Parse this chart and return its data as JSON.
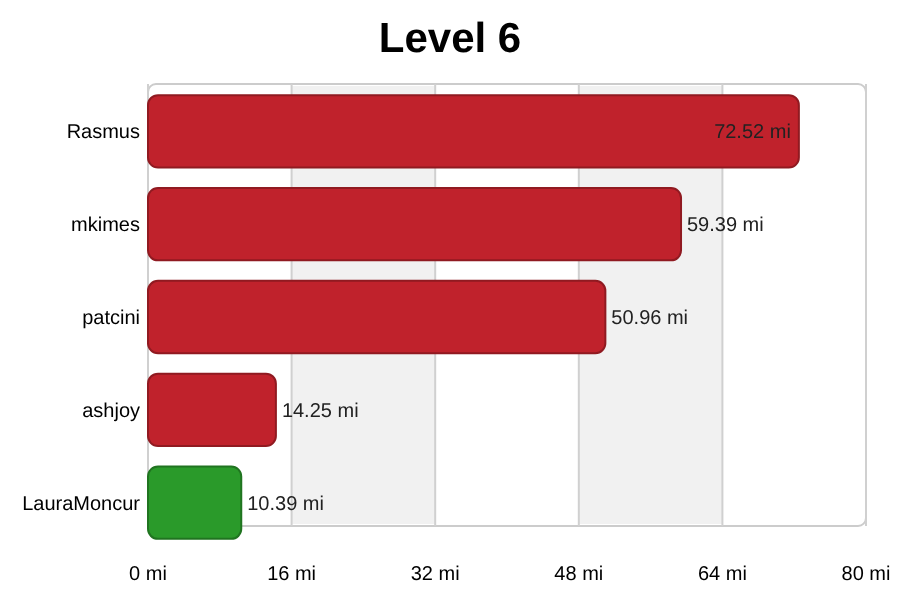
{
  "chart_data": {
    "type": "bar",
    "orientation": "horizontal",
    "title": "Level 6",
    "categories": [
      "Rasmus",
      "mkimes",
      "patcini",
      "ashjoy",
      "LauraMoncur"
    ],
    "values": [
      72.52,
      59.39,
      50.96,
      14.25,
      10.39
    ],
    "colors": [
      "#c0222c",
      "#c0222c",
      "#c0222c",
      "#c0222c",
      "#2a9a2a"
    ],
    "value_labels": [
      "72.52 mi",
      "59.39 mi",
      "50.96 mi",
      "14.25 mi",
      "10.39 mi"
    ],
    "xlim": [
      0,
      80
    ],
    "xticks": [
      {
        "value": 0,
        "label": "0 mi"
      },
      {
        "value": 16,
        "label": "16 mi"
      },
      {
        "value": 32,
        "label": "32 mi"
      },
      {
        "value": 48,
        "label": "48 mi"
      },
      {
        "value": 64,
        "label": "64 mi"
      },
      {
        "value": 80,
        "label": "80 mi"
      }
    ],
    "grid": "x"
  }
}
